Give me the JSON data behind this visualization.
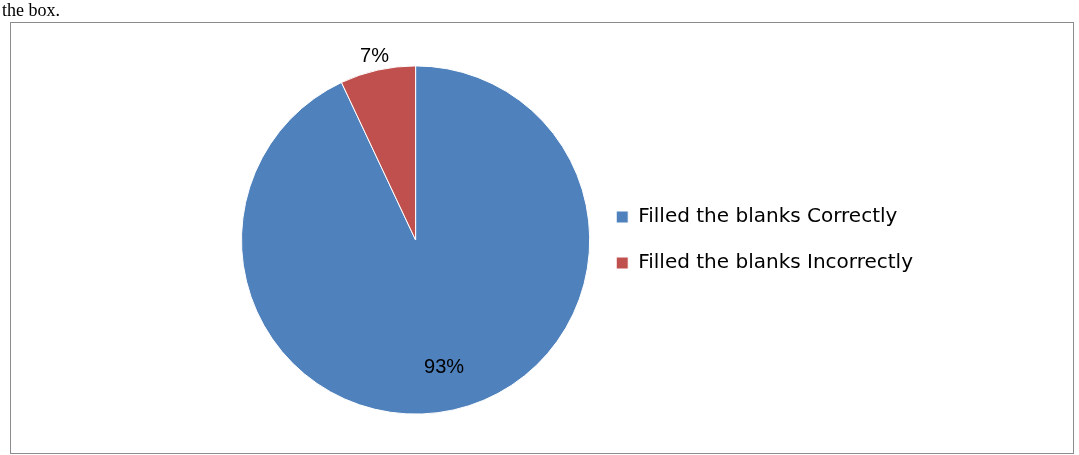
{
  "chart_data": {
    "type": "pie",
    "annotations": [
      "the box."
    ],
    "categories": [
      "Filled the blanks Correctly",
      "Filled the blanks Incorrectly"
    ],
    "values": [
      93,
      7
    ],
    "colors": [
      "#4f81bd",
      "#c0504d"
    ],
    "value_labels": [
      "93%",
      "7%"
    ],
    "legend": "right"
  }
}
